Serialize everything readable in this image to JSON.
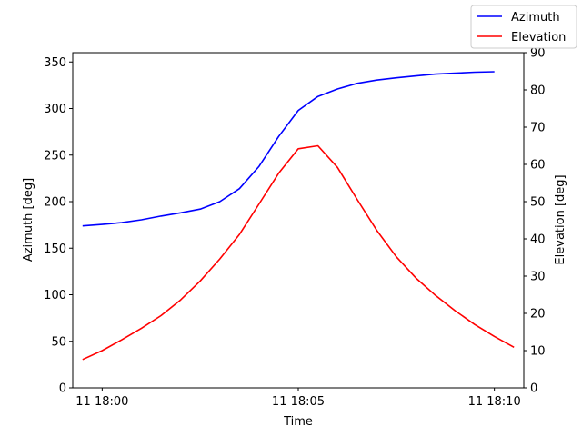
{
  "chart_data": {
    "type": "line",
    "xlabel": "Time",
    "ylabel_left": "Azimuth [deg]",
    "ylabel_right": "Elevation [deg]",
    "x_ticks": [
      "11 18:00",
      "11 18:05",
      "11 18:10"
    ],
    "x_tick_minutes": [
      0,
      5,
      10
    ],
    "xlim_minutes": [
      -0.5,
      10.7
    ],
    "ylim_left": [
      0,
      360
    ],
    "yticks_left": [
      0,
      50,
      100,
      150,
      200,
      250,
      300,
      350
    ],
    "ylim_right": [
      0,
      90
    ],
    "yticks_right": [
      0,
      10,
      20,
      30,
      40,
      50,
      60,
      70,
      80,
      90
    ],
    "grid": false,
    "legend_position": "top-right",
    "series": [
      {
        "name": "Azimuth",
        "axis": "left",
        "color": "#0000ff",
        "points": [
          [
            -0.5,
            174
          ],
          [
            0,
            175.5
          ],
          [
            0.5,
            177.5
          ],
          [
            1,
            180.5
          ],
          [
            1.5,
            184.5
          ],
          [
            2,
            188
          ],
          [
            2.5,
            192
          ],
          [
            3,
            200
          ],
          [
            3.5,
            214
          ],
          [
            4,
            238
          ],
          [
            4.5,
            270
          ],
          [
            5,
            298
          ],
          [
            5.5,
            313
          ],
          [
            6,
            321
          ],
          [
            6.5,
            327
          ],
          [
            7,
            330.5
          ],
          [
            7.5,
            333
          ],
          [
            8,
            335
          ],
          [
            8.5,
            337
          ],
          [
            9,
            338
          ],
          [
            9.5,
            339
          ],
          [
            10,
            339.5
          ]
        ]
      },
      {
        "name": "Elevation",
        "axis": "right",
        "color": "#ff0000",
        "points": [
          [
            -0.5,
            7.6
          ],
          [
            0,
            10
          ],
          [
            0.5,
            12.9
          ],
          [
            1,
            16
          ],
          [
            1.5,
            19.4
          ],
          [
            2,
            23.6
          ],
          [
            2.5,
            28.7
          ],
          [
            3,
            34.6
          ],
          [
            3.5,
            41.2
          ],
          [
            4,
            49.4
          ],
          [
            4.5,
            57.6
          ],
          [
            5,
            64.2
          ],
          [
            5.5,
            65
          ],
          [
            6,
            59.2
          ],
          [
            6.5,
            50.6
          ],
          [
            7,
            42.3
          ],
          [
            7.5,
            35.2
          ],
          [
            8,
            29.5
          ],
          [
            8.5,
            24.8
          ],
          [
            9,
            20.7
          ],
          [
            9.5,
            17
          ],
          [
            10,
            13.8
          ],
          [
            10.5,
            10.9
          ]
        ]
      }
    ]
  }
}
